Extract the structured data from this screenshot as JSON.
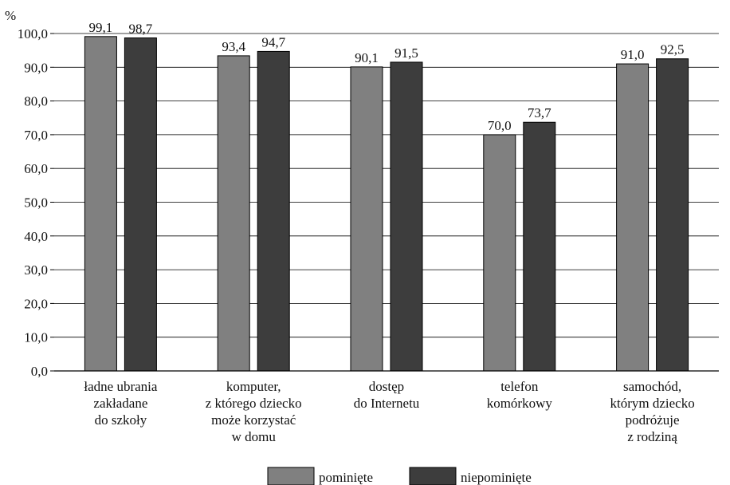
{
  "chart_data": {
    "type": "bar",
    "ylabel": "%",
    "ylim": [
      0,
      100
    ],
    "yticks": [
      "0,0",
      "10,0",
      "20,0",
      "30,0",
      "40,0",
      "50,0",
      "60,0",
      "70,0",
      "80,0",
      "90,0",
      "100,0"
    ],
    "grid": true,
    "legend": "bottom",
    "categories": [
      [
        "ładne ubrania",
        "zakładane",
        "do szkoły"
      ],
      [
        "komputer,",
        "z którego dziecko",
        "może korzystać",
        "w domu"
      ],
      [
        "dostęp",
        "do Internetu"
      ],
      [
        "telefon",
        "komórkowy"
      ],
      [
        "samochód,",
        "którym dziecko",
        "podróżuje",
        "z rodziną"
      ]
    ],
    "series": [
      {
        "name": "pominięte",
        "values": [
          99.1,
          93.4,
          90.1,
          70.0,
          91.0
        ],
        "labels": [
          "99,1",
          "93,4",
          "90,1",
          "70,0",
          "91,0"
        ],
        "color": "#808080"
      },
      {
        "name": "niepominięte",
        "values": [
          98.7,
          94.7,
          91.5,
          73.7,
          92.5
        ],
        "labels": [
          "98,7",
          "94,7",
          "91,5",
          "73,7",
          "92,5"
        ],
        "color": "#3d3d3d"
      }
    ]
  }
}
